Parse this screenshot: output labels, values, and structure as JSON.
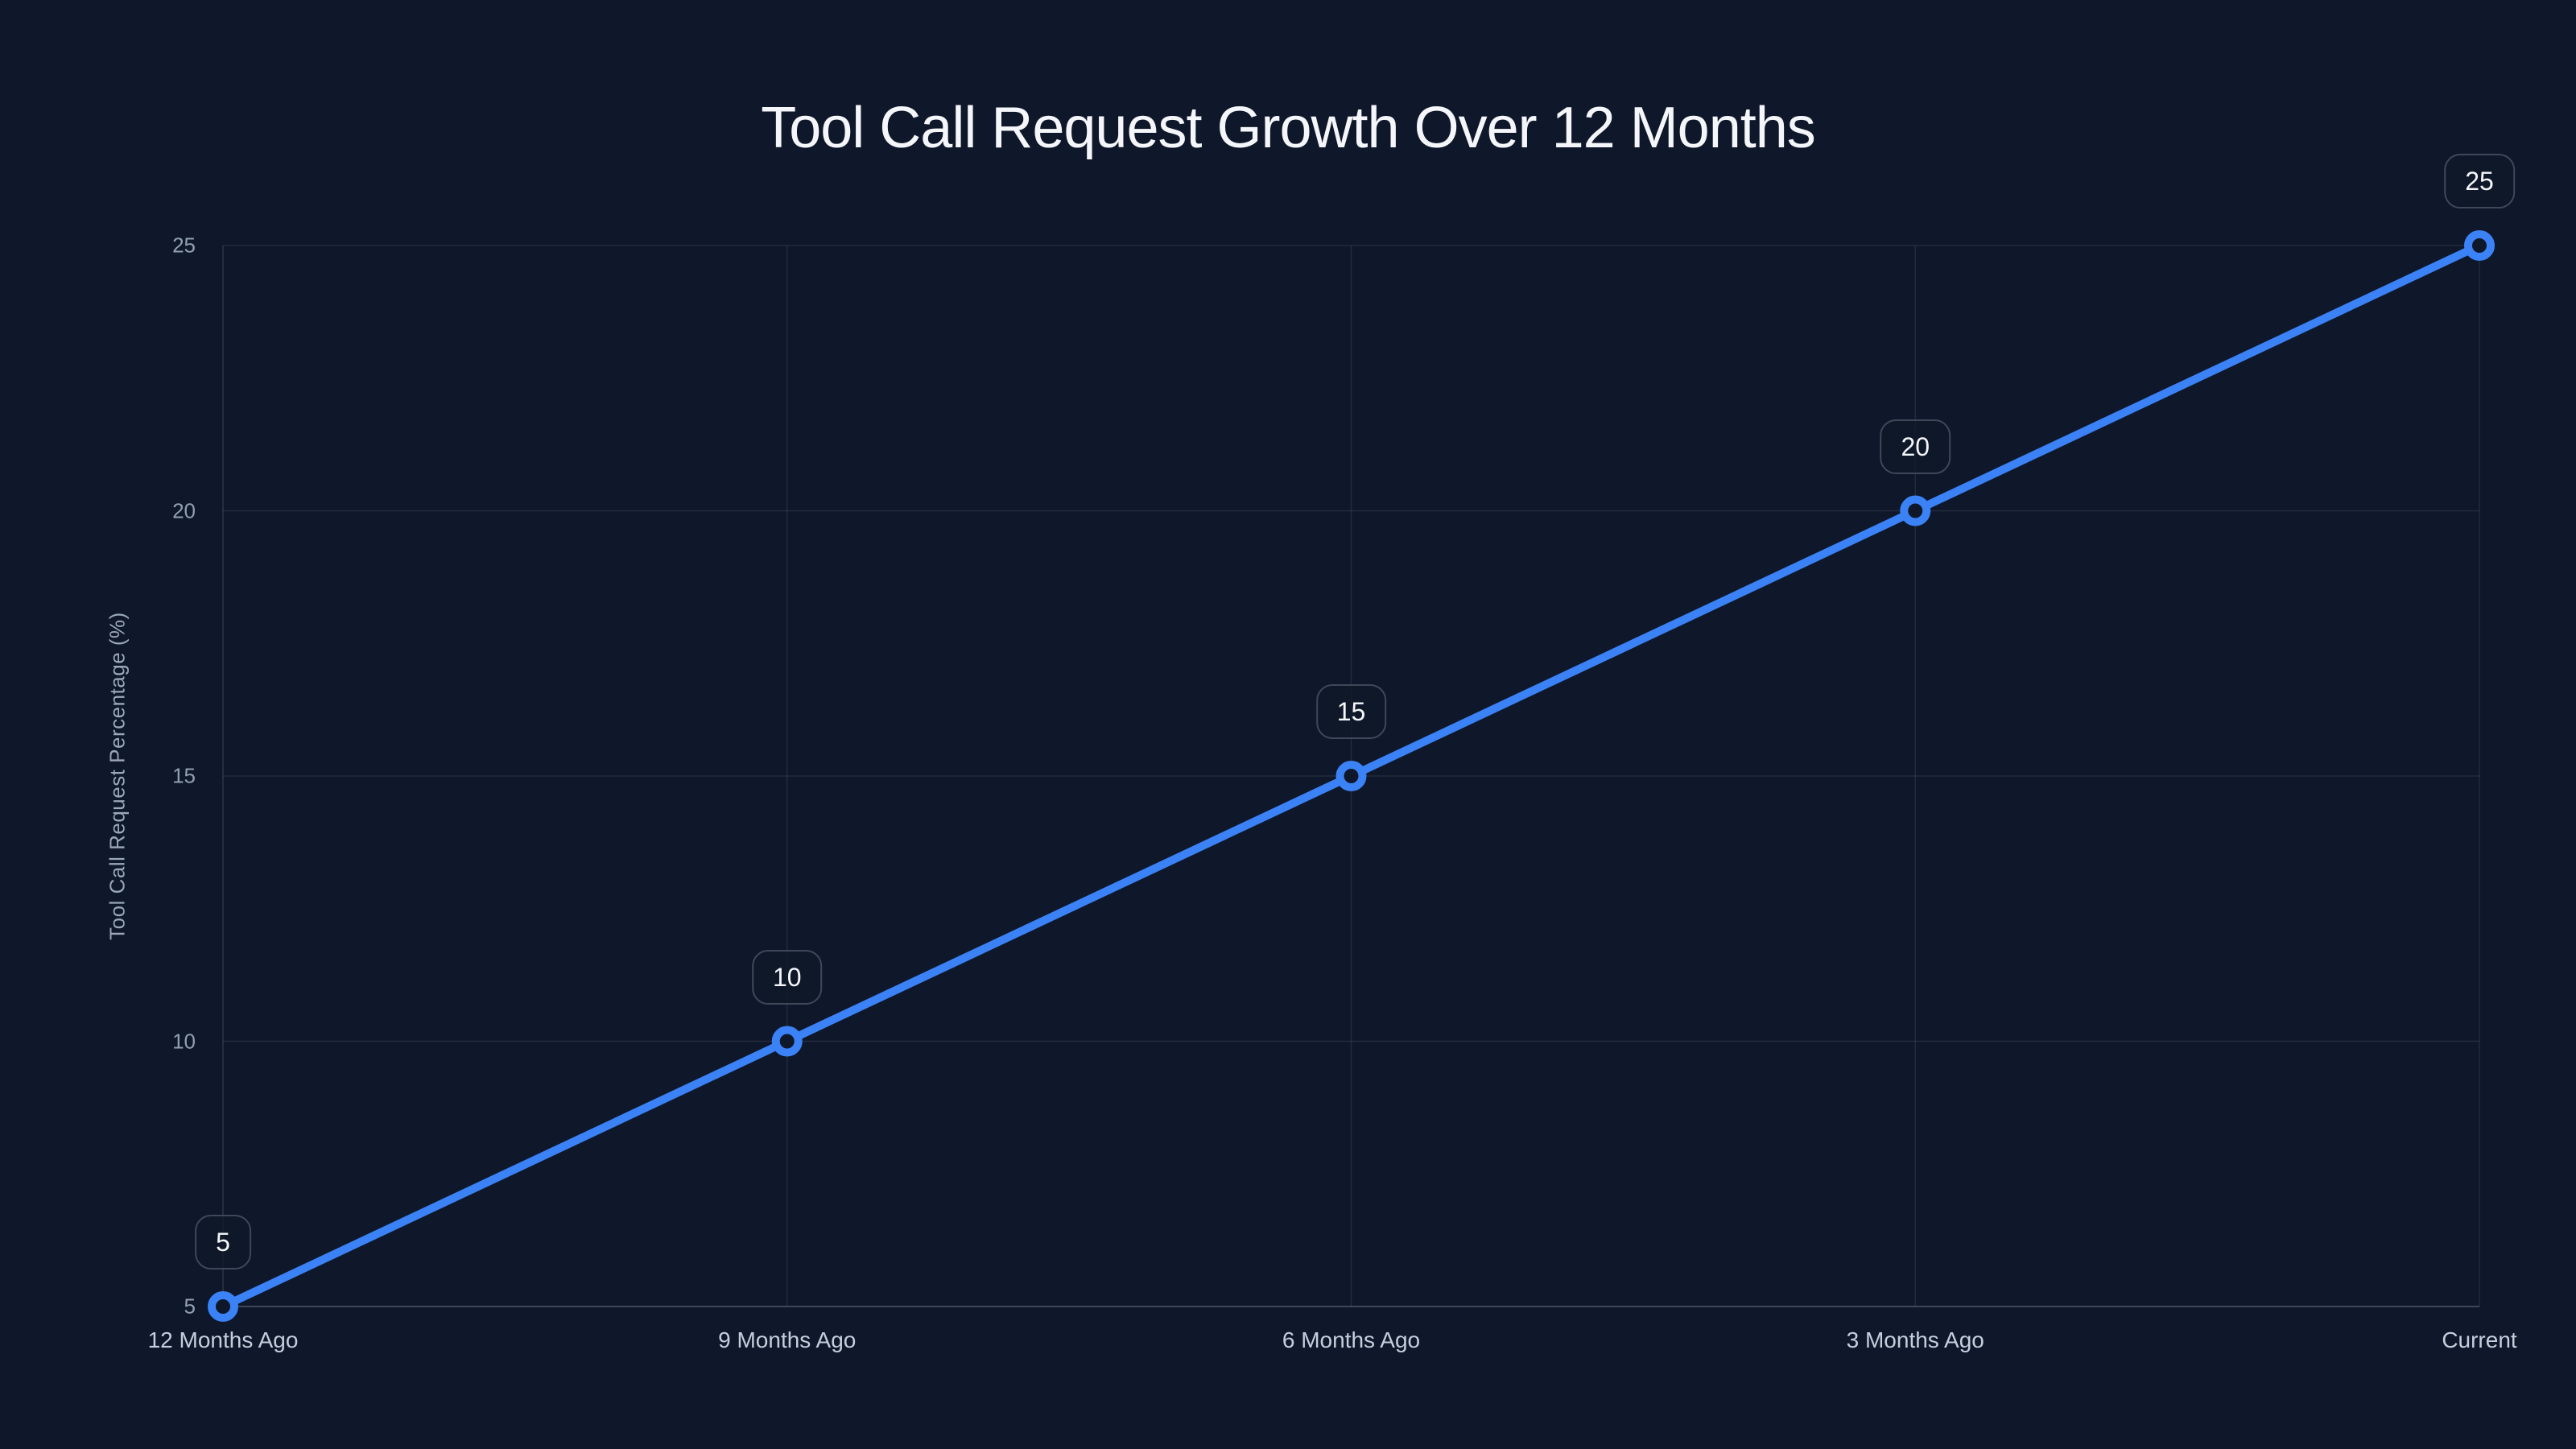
{
  "chart_data": {
    "type": "line",
    "title": "Tool Call Request Growth Over 12 Months",
    "xlabel": "",
    "ylabel": "Tool Call Request Percentage (%)",
    "categories": [
      "12 Months Ago",
      "9 Months Ago",
      "6 Months Ago",
      "3 Months Ago",
      "Current"
    ],
    "values": [
      5,
      10,
      15,
      20,
      25
    ],
    "data_labels": [
      "5",
      "10",
      "15",
      "20",
      "25"
    ],
    "yticks": [
      "5",
      "10",
      "15",
      "20",
      "25"
    ],
    "ylim": [
      5,
      25
    ],
    "grid": true,
    "legend": false,
    "marker_style": "open-circle",
    "colors": {
      "background": "#0f172a",
      "line": "#3b82f6",
      "marker_ring": "#3b82f6",
      "marker_fill": "#0f172a",
      "grid_line": "#94a3b8",
      "title_text": "#f4f6fa",
      "y_tick_text": "#91a0b2",
      "x_tick_text": "#c5cfdc",
      "label_box_border": "#3e4859",
      "label_box_text": "#f4f6fa"
    }
  }
}
